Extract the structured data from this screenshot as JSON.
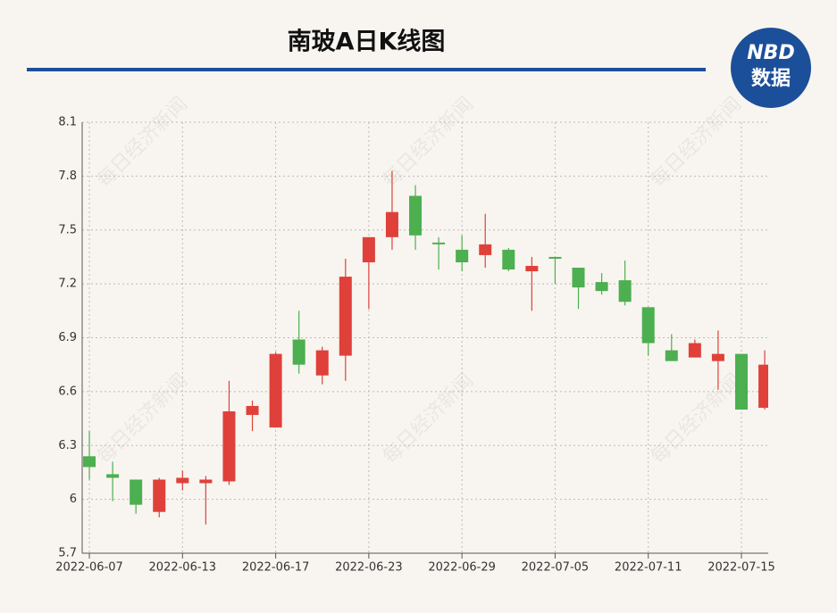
{
  "chart_data": {
    "type": "candlestick",
    "title": "南玻A日K线图",
    "categories": [
      "2022-06-07",
      null,
      null,
      null,
      "2022-06-13",
      null,
      null,
      null,
      "2022-06-17",
      null,
      null,
      null,
      "2022-06-23",
      null,
      null,
      null,
      "2022-06-29",
      null,
      null,
      null,
      "2022-07-05",
      null,
      null,
      null,
      "2022-07-11",
      null,
      null,
      null,
      "2022-07-15",
      null
    ],
    "open": [
      6.24,
      6.14,
      6.11,
      5.93,
      6.09,
      6.09,
      6.1,
      6.47,
      6.4,
      6.89,
      6.69,
      6.8,
      7.32,
      7.46,
      7.69,
      7.43,
      7.39,
      7.36,
      7.39,
      7.27,
      7.35,
      7.29,
      7.21,
      7.22,
      7.07,
      6.83,
      6.79,
      6.77,
      6.81,
      6.51
    ],
    "high": [
      6.38,
      6.21,
      6.11,
      6.12,
      6.16,
      6.13,
      6.66,
      6.55,
      6.82,
      7.05,
      6.85,
      7.34,
      7.46,
      7.83,
      7.75,
      7.46,
      7.47,
      7.59,
      7.4,
      7.35,
      7.35,
      7.29,
      7.26,
      7.33,
      7.07,
      6.92,
      6.89,
      6.94,
      6.81,
      6.83
    ],
    "low": [
      6.11,
      5.99,
      5.92,
      5.9,
      6.05,
      5.86,
      6.08,
      6.38,
      6.4,
      6.7,
      6.64,
      6.66,
      7.06,
      7.39,
      7.39,
      7.28,
      7.27,
      7.29,
      7.27,
      7.05,
      7.2,
      7.06,
      7.14,
      7.08,
      6.8,
      6.77,
      6.79,
      6.61,
      6.5,
      6.5
    ],
    "close": [
      6.18,
      6.12,
      5.97,
      6.11,
      6.12,
      6.11,
      6.49,
      6.52,
      6.81,
      6.75,
      6.83,
      7.24,
      7.46,
      7.6,
      7.47,
      7.42,
      7.32,
      7.42,
      7.28,
      7.3,
      7.34,
      7.18,
      7.16,
      7.1,
      6.87,
      6.77,
      6.87,
      6.81,
      6.5,
      6.75
    ],
    "up_color": "#e0403a",
    "down_color": "#4caf50",
    "ylim": [
      5.7,
      8.1
    ],
    "yticks": [
      5.7,
      6,
      6.3,
      6.6,
      6.9,
      7.2,
      7.5,
      7.8,
      8.1
    ],
    "grid": true
  },
  "logo": {
    "line1": "NBD",
    "line2": "数据"
  },
  "watermark": "每日经济新闻"
}
